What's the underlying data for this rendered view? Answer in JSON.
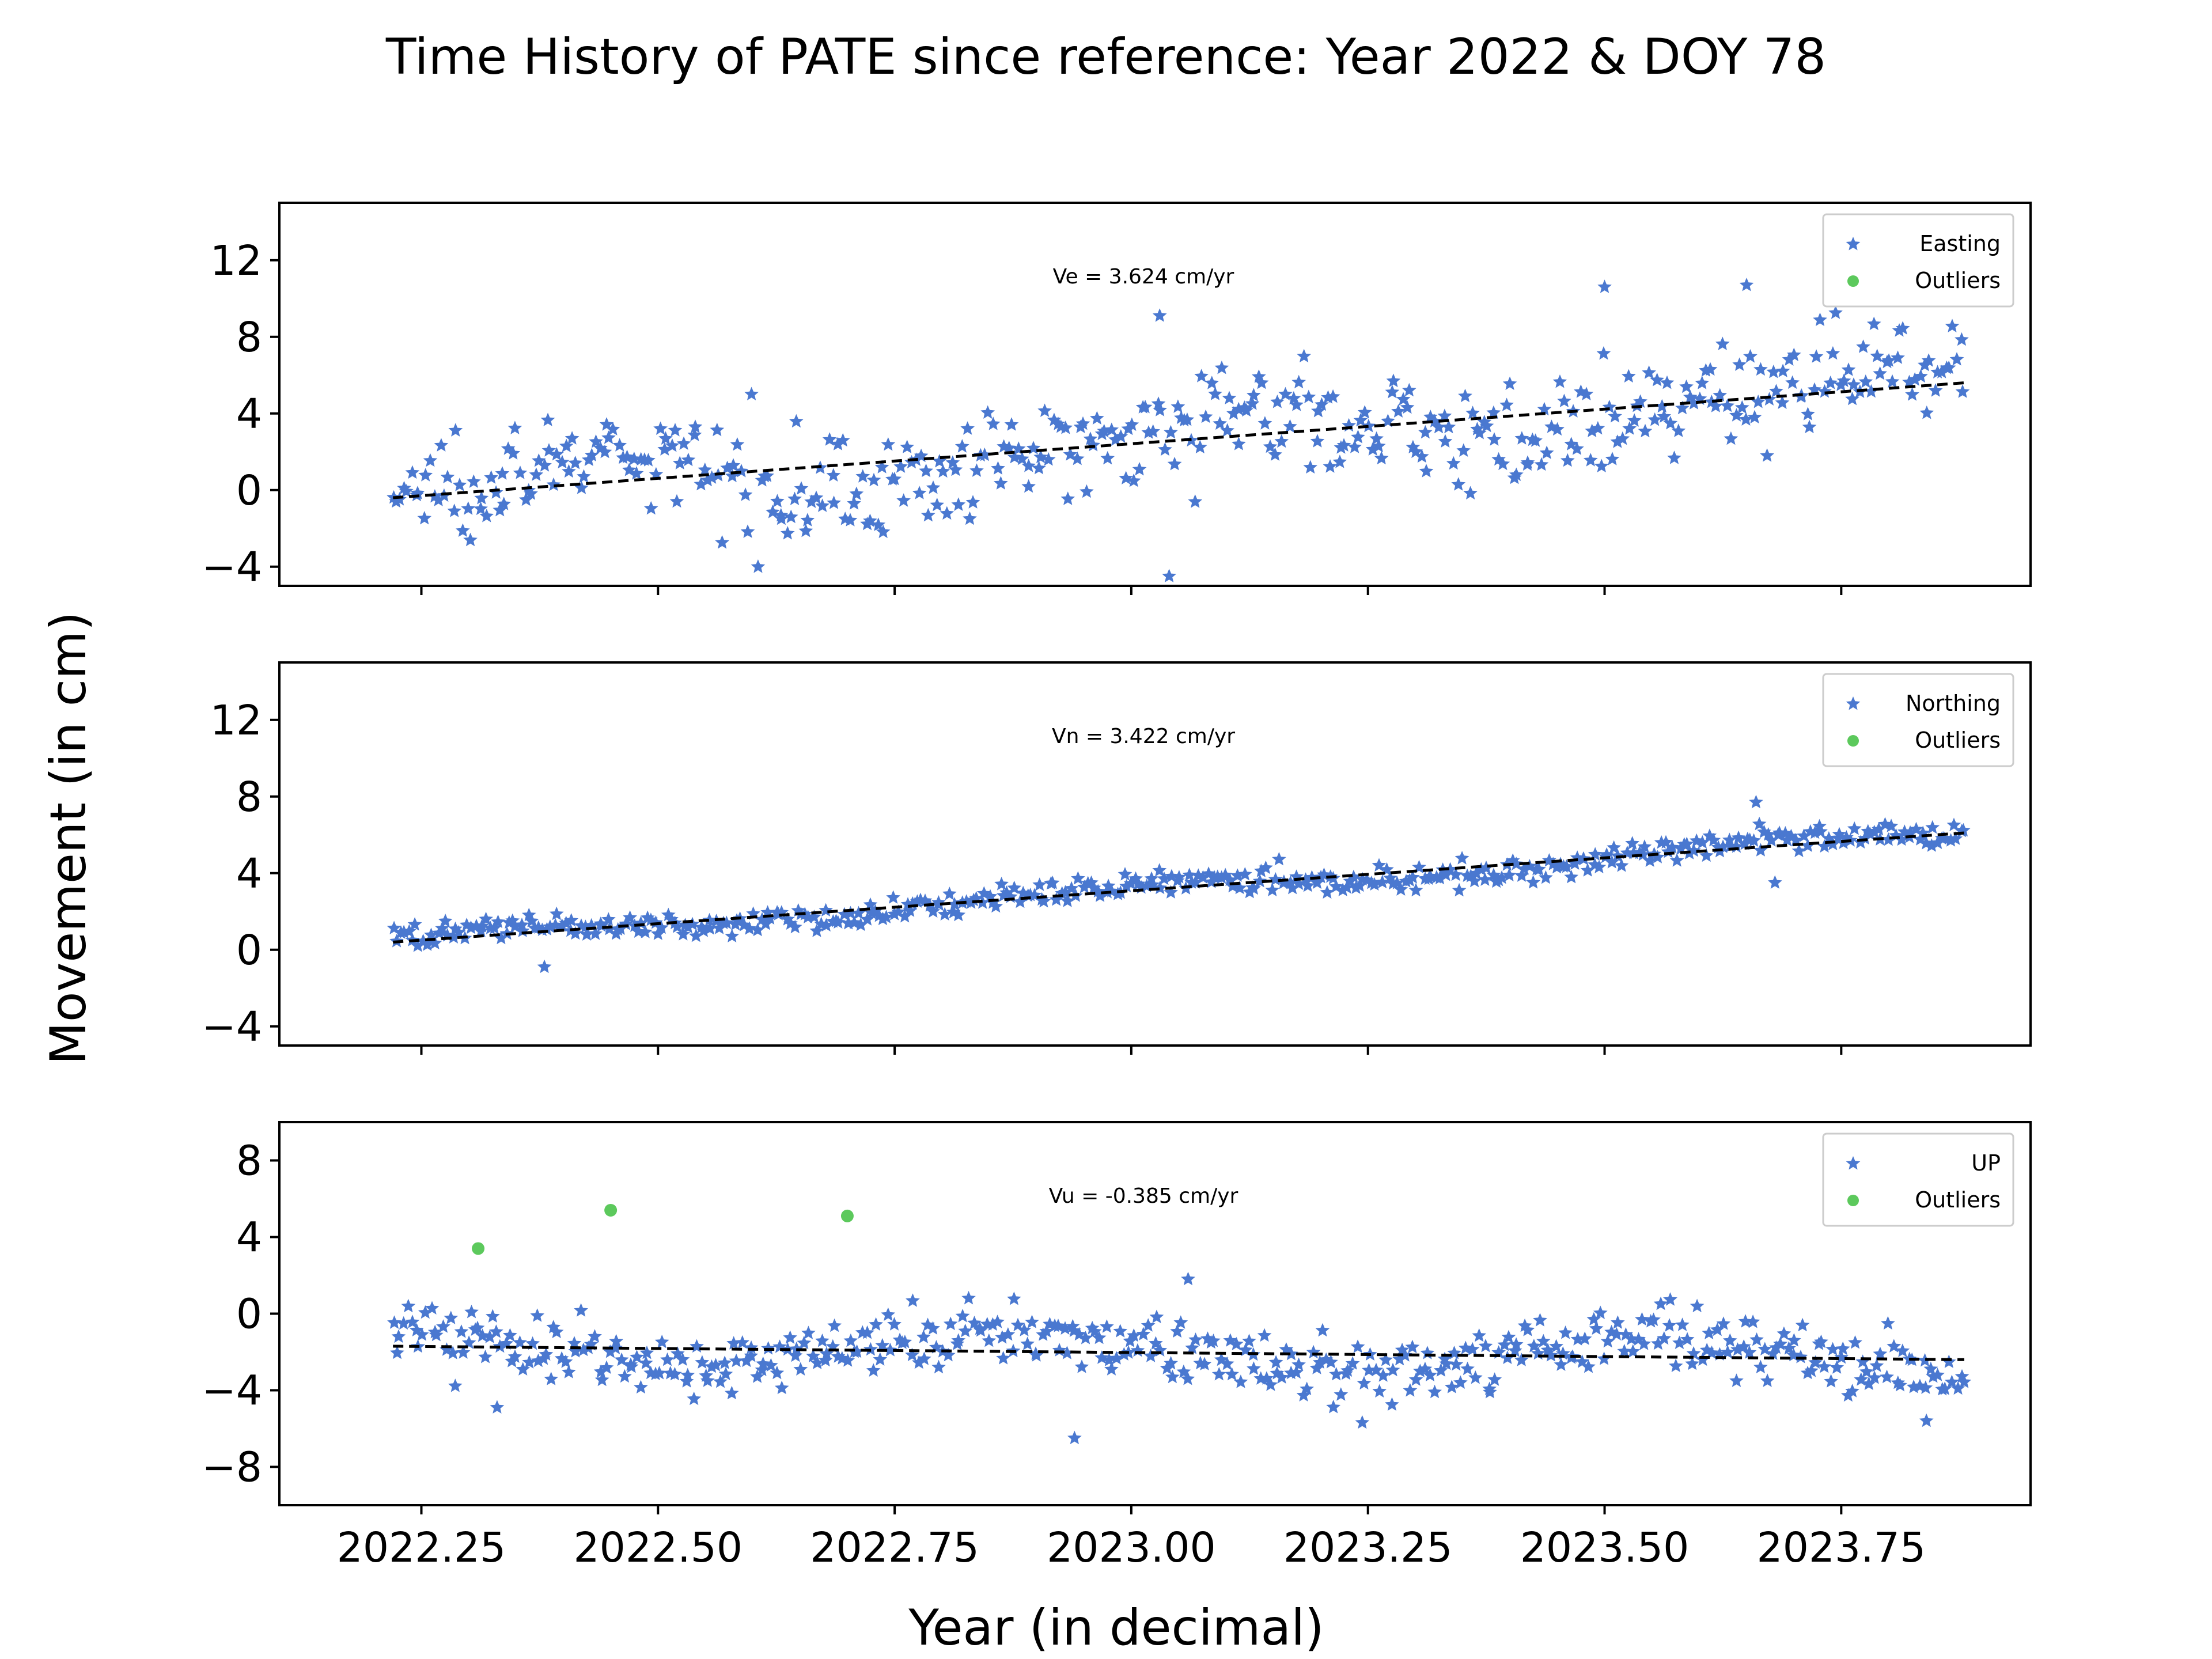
{
  "figure": {
    "title": "Time History of PATE since reference: Year 2022 & DOY 78",
    "ylabel": "Movement (in cm)",
    "xlabel": "Year (in decimal)"
  },
  "colors": {
    "data": "#4a78d0",
    "outlier": "#5cc95c",
    "trend": "#000000",
    "frame": "#000000"
  },
  "chart_data": [
    {
      "type": "scatter",
      "name": "east",
      "annotation": "Ve =  3.624 cm/yr",
      "legend": [
        "Easting",
        "Outliers"
      ],
      "legend_position": "top-right",
      "xlim": [
        2022.1,
        2023.95
      ],
      "ylim": [
        -5,
        15
      ],
      "yticks": [
        -4,
        0,
        4,
        8,
        12
      ],
      "xticks": [
        2022.25,
        2022.5,
        2022.75,
        2023.0,
        2023.25,
        2023.5,
        2023.75
      ],
      "show_xticklabels": false,
      "trend": {
        "x": [
          2022.22,
          2023.88
        ],
        "y": [
          -0.4,
          5.6
        ]
      },
      "base": {
        "a": -0.4,
        "b": 3.624
      },
      "noise": 2.4,
      "n_points": 420,
      "highlights": [
        [
          2023.03,
          9.1
        ],
        [
          2023.04,
          -4.5
        ],
        [
          2023.65,
          10.7
        ],
        [
          2023.5,
          10.6
        ]
      ],
      "outliers": []
    },
    {
      "type": "scatter",
      "name": "north",
      "annotation": "Vn =  3.422 cm/yr",
      "legend": [
        "Northing",
        "Outliers"
      ],
      "legend_position": "top-right",
      "xlim": [
        2022.1,
        2023.95
      ],
      "ylim": [
        -5,
        15
      ],
      "yticks": [
        -4,
        0,
        4,
        8,
        12
      ],
      "xticks": [
        2022.25,
        2022.5,
        2022.75,
        2023.0,
        2023.25,
        2023.5,
        2023.75
      ],
      "show_xticklabels": false,
      "trend": {
        "x": [
          2022.22,
          2023.88
        ],
        "y": [
          0.4,
          6.1
        ]
      },
      "base": {
        "a": 0.4,
        "b": 3.422
      },
      "noise": 0.6,
      "n_points": 420,
      "highlights": [
        [
          2023.66,
          7.7
        ],
        [
          2022.38,
          -0.9
        ],
        [
          2023.68,
          3.5
        ]
      ],
      "outliers": []
    },
    {
      "type": "scatter",
      "name": "up",
      "annotation": "Vu = -0.385 cm/yr",
      "legend": [
        "UP",
        "Outliers"
      ],
      "legend_position": "top-right",
      "xlim": [
        2022.1,
        2023.95
      ],
      "ylim": [
        -10,
        10
      ],
      "yticks": [
        -8,
        -4,
        0,
        4,
        8
      ],
      "xticks": [
        2022.25,
        2022.5,
        2022.75,
        2023.0,
        2023.25,
        2023.5,
        2023.75
      ],
      "xticklabels": [
        "2022.25",
        "2022.50",
        "2022.75",
        "2023.00",
        "2023.25",
        "2023.50",
        "2023.75"
      ],
      "show_xticklabels": true,
      "trend": {
        "x": [
          2022.22,
          2023.88
        ],
        "y": [
          -1.7,
          -2.4
        ]
      },
      "base": {
        "a": -1.7,
        "b": -0.385
      },
      "noise": 1.5,
      "n_points": 420,
      "highlights": [
        [
          2023.06,
          1.8
        ],
        [
          2022.94,
          -6.5
        ],
        [
          2023.84,
          -5.6
        ],
        [
          2022.33,
          -4.9
        ]
      ],
      "outliers": [
        [
          2022.31,
          3.4
        ],
        [
          2022.45,
          5.4
        ],
        [
          2022.7,
          5.1
        ]
      ]
    }
  ]
}
